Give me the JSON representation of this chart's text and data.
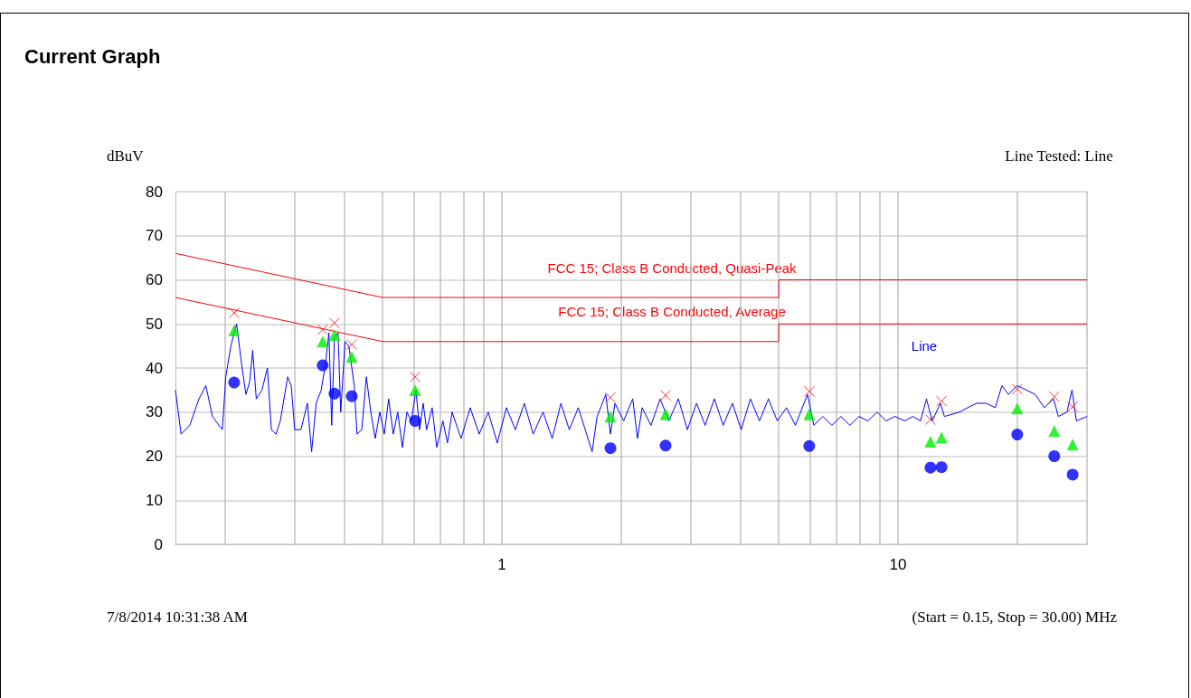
{
  "chart_data": {
    "type": "line",
    "title": "Current Graph",
    "ylabel": "dBuV",
    "xlabel": "(Start = 0.15, Stop = 30.00) MHz",
    "annotations": [
      "Line Tested: Line",
      "7/8/2014 10:31:38 AM"
    ],
    "log": "x",
    "grid": true,
    "legend": false,
    "tick_labels": "xy",
    "xlim": [
      0.15,
      30
    ],
    "xticks": [
      {
        "value": 0.2,
        "label": null
      },
      {
        "value": 0.3,
        "label": null
      },
      {
        "value": 0.4,
        "label": null
      },
      {
        "value": 0.5,
        "label": null
      },
      {
        "value": 0.6,
        "label": null
      },
      {
        "value": 0.7,
        "label": null
      },
      {
        "value": 0.8,
        "label": null
      },
      {
        "value": 0.9,
        "label": null
      },
      1,
      {
        "value": 2,
        "label": null
      },
      {
        "value": 3,
        "label": null
      },
      {
        "value": 4,
        "label": null
      },
      {
        "value": 5,
        "label": null
      },
      {
        "value": 6,
        "label": null
      },
      {
        "value": 7,
        "label": null
      },
      {
        "value": 8,
        "label": null
      },
      {
        "value": 9,
        "label": null
      },
      10,
      {
        "value": 20,
        "label": null
      },
      {
        "value": 30,
        "label": null
      }
    ],
    "ylim": [
      0,
      80
    ],
    "yticks": [
      0,
      10,
      20,
      30,
      40,
      50,
      60,
      70,
      80
    ],
    "series": [
      {
        "name": "FCC 15; Class B Conducted, Quasi-Peak",
        "marker": "none",
        "color": "#ff0000",
        "x": [
          0.15,
          0.5,
          5,
          5,
          30
        ],
        "values": [
          66,
          56,
          56,
          60,
          60
        ]
      },
      {
        "name": "FCC 15; Class B Conducted, Average",
        "marker": "none",
        "color": "#ff0000",
        "x": [
          0.15,
          0.5,
          5,
          5,
          30
        ],
        "values": [
          56,
          46,
          46,
          50,
          50
        ]
      },
      {
        "name": "Line",
        "marker": "none",
        "color": "#0000ff",
        "x": [
          0.15,
          0.155,
          0.163,
          0.172,
          0.179,
          0.186,
          0.197,
          0.201,
          0.207,
          0.214,
          0.221,
          0.226,
          0.231,
          0.235,
          0.24,
          0.248,
          0.256,
          0.262,
          0.269,
          0.276,
          0.288,
          0.294,
          0.3,
          0.311,
          0.323,
          0.331,
          0.34,
          0.35,
          0.359,
          0.366,
          0.372,
          0.378,
          0.386,
          0.392,
          0.402,
          0.411,
          0.424,
          0.431,
          0.443,
          0.455,
          0.467,
          0.479,
          0.492,
          0.505,
          0.518,
          0.532,
          0.546,
          0.561,
          0.576,
          0.591,
          0.607,
          0.62,
          0.633,
          0.646,
          0.667,
          0.685,
          0.71,
          0.729,
          0.749,
          0.789,
          0.832,
          0.877,
          0.924,
          0.974,
          1.027,
          1.082,
          1.14,
          1.2,
          1.27,
          1.34,
          1.41,
          1.48,
          1.56,
          1.65,
          1.69,
          1.74,
          1.83,
          1.88,
          1.93,
          2.03,
          2.14,
          2.2,
          2.26,
          2.38,
          2.51,
          2.64,
          2.79,
          2.94,
          3.1,
          3.26,
          3.44,
          3.62,
          3.82,
          4.02,
          4.24,
          4.47,
          4.71,
          4.96,
          5.23,
          5.51,
          5.91,
          6.13,
          6.46,
          6.81,
          7.18,
          7.56,
          7.97,
          8.4,
          8.86,
          9.33,
          9.83,
          10.4,
          10.9,
          11.4,
          11.8,
          12.2,
          12.8,
          13.1,
          14.3,
          15,
          15.8,
          16.7,
          17.6,
          18.3,
          19,
          20,
          21.1,
          22.2,
          23.4,
          24.7,
          25.4,
          26.7,
          27.5,
          28.2,
          30
        ],
        "values": [
          35,
          25,
          27,
          33,
          36,
          29,
          26,
          38,
          45,
          50,
          40,
          34,
          37,
          44,
          33,
          35,
          40,
          26,
          25,
          28,
          38,
          36,
          26,
          26,
          32,
          21,
          32,
          35,
          41,
          48,
          27,
          47,
          48,
          30,
          46,
          45,
          36,
          25,
          26,
          38,
          30,
          24,
          30,
          25,
          33,
          25,
          30,
          22,
          30,
          28,
          35,
          26,
          32,
          26,
          31,
          22,
          28,
          23,
          30,
          24,
          31,
          25,
          30,
          23,
          31,
          26,
          32,
          25,
          30,
          24,
          32,
          26,
          31,
          24,
          21,
          29,
          34,
          25,
          32,
          28,
          33,
          24,
          31,
          27,
          33,
          28,
          33,
          26,
          32,
          27,
          33,
          27,
          32,
          26,
          33,
          28,
          33,
          28,
          31,
          27,
          34,
          27,
          29,
          27,
          29,
          27,
          29,
          28,
          30,
          28,
          29,
          28,
          29,
          28,
          33,
          28,
          32,
          29,
          30,
          31,
          32,
          32,
          31,
          36,
          34,
          36,
          35,
          34,
          31,
          33,
          29,
          30,
          35,
          28,
          29
        ]
      },
      {
        "type": "scatter",
        "marker": "cross",
        "color": "#ff0000",
        "x": [
          0.211,
          0.353,
          0.378,
          0.418,
          0.604,
          1.88,
          2.59,
          5.97,
          12.08,
          12.88,
          20.0,
          24.8,
          27.6
        ],
        "values": [
          52.5,
          48.7,
          50.2,
          45.3,
          38,
          33.3,
          33.8,
          34.7,
          28.3,
          32.5,
          35.2,
          33.5,
          31.2
        ]
      },
      {
        "type": "scatter",
        "marker": "triangle",
        "color": "#00ee00",
        "x": [
          0.211,
          0.353,
          0.378,
          0.418,
          0.604,
          1.88,
          2.59,
          5.97,
          12.08,
          12.88,
          20.0,
          24.8,
          27.6
        ],
        "values": [
          48.5,
          46,
          47.5,
          42.5,
          35,
          29,
          29.5,
          29.5,
          23.3,
          24.2,
          30.8,
          25.7,
          22.6
        ]
      },
      {
        "type": "scatter",
        "marker": "circle",
        "color": "#0000ff",
        "x": [
          0.211,
          0.353,
          0.378,
          0.418,
          0.604,
          1.88,
          2.59,
          5.97,
          12.08,
          12.88,
          20.0,
          24.8,
          27.6
        ],
        "values": [
          36.7,
          40.6,
          34.2,
          33.6,
          28,
          21.8,
          22.4,
          22.3,
          17.4,
          17.5,
          24.9,
          20,
          15.8
        ]
      }
    ]
  }
}
